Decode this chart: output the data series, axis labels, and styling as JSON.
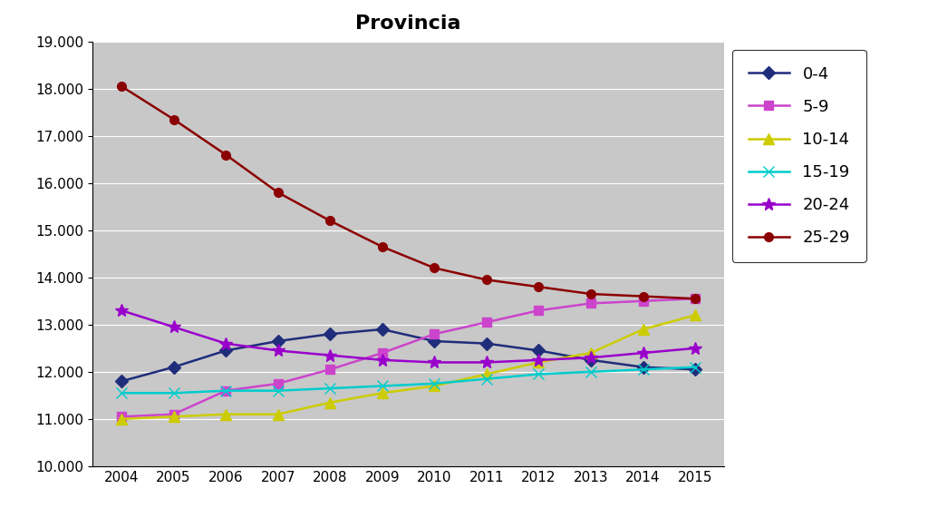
{
  "title": "Provincia",
  "years": [
    2004,
    2005,
    2006,
    2007,
    2008,
    2009,
    2010,
    2011,
    2012,
    2013,
    2014,
    2015
  ],
  "series": [
    {
      "label": "0-4",
      "values": [
        11800,
        12100,
        12450,
        12650,
        12800,
        12900,
        12650,
        12600,
        12450,
        12250,
        12100,
        12050
      ],
      "color": "#1F2D7B",
      "marker": "D",
      "markersize": 7
    },
    {
      "label": "5-9",
      "values": [
        11050,
        11100,
        11600,
        11750,
        12050,
        12400,
        12800,
        13050,
        13300,
        13450,
        13500,
        13550
      ],
      "color": "#CC44CC",
      "marker": "s",
      "markersize": 7
    },
    {
      "label": "10-14",
      "values": [
        11000,
        11050,
        11100,
        11100,
        11350,
        11550,
        11700,
        11950,
        12200,
        12400,
        12900,
        13200
      ],
      "color": "#CCCC00",
      "marker": "^",
      "markersize": 8
    },
    {
      "label": "15-19",
      "values": [
        11550,
        11550,
        11600,
        11600,
        11650,
        11700,
        11750,
        11850,
        11950,
        12000,
        12050,
        12100
      ],
      "color": "#00CCCC",
      "marker": "x",
      "markersize": 8
    },
    {
      "label": "20-24",
      "values": [
        13300,
        12950,
        12600,
        12450,
        12350,
        12250,
        12200,
        12200,
        12250,
        12300,
        12400,
        12500
      ],
      "color": "#9900CC",
      "marker": "*",
      "markersize": 10
    },
    {
      "label": "25-29",
      "values": [
        18050,
        17350,
        16600,
        15800,
        15200,
        14650,
        14200,
        13950,
        13800,
        13650,
        13600,
        13550
      ],
      "color": "#8B0000",
      "marker": "o",
      "markersize": 7
    }
  ],
  "ylim": [
    10000,
    19000
  ],
  "yticks": [
    10000,
    11000,
    12000,
    13000,
    14000,
    15000,
    16000,
    17000,
    18000,
    19000
  ],
  "figure_bg": "#FFFFFF",
  "plot_area_color": "#C8C8C8",
  "grid_color": "#FFFFFF",
  "title_fontsize": 16,
  "tick_fontsize": 11,
  "legend_fontsize": 13,
  "linewidth": 1.8
}
